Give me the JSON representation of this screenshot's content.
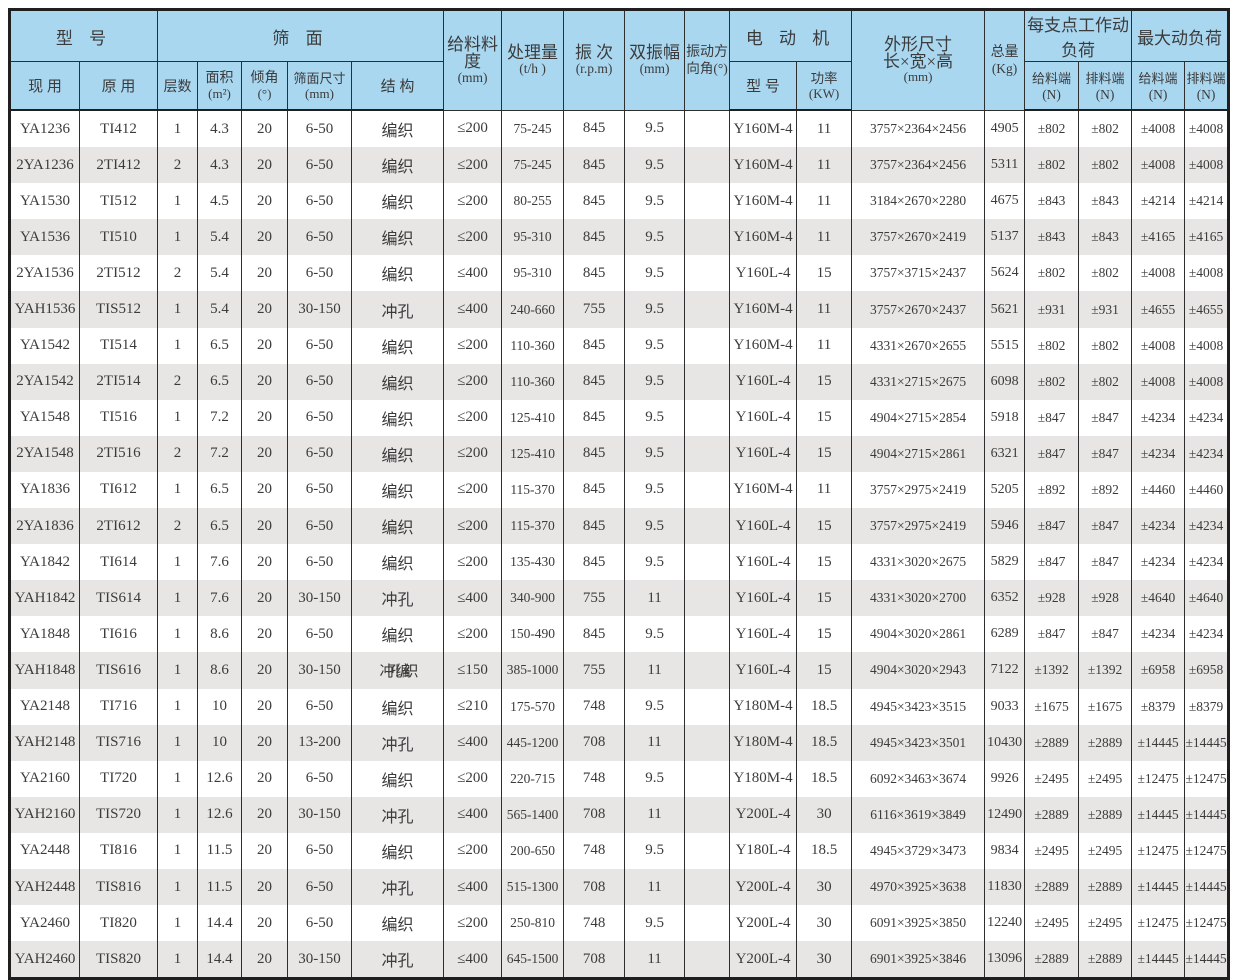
{
  "colors": {
    "header_bg": "#aad7f0",
    "stripe_bg": "#e8e6e4",
    "border": "#2e2e2e",
    "text": "#3b3b3b"
  },
  "table": {
    "header": {
      "group_model": "型  号",
      "model_current": "现 用",
      "model_original": "原 用",
      "group_screen": "筛  面",
      "layers": "层数",
      "area_l1": "面积",
      "area_l2": "(m²)",
      "incline_l1": "倾角",
      "incline_l2": "(°)",
      "mesh_l1": "筛面尺寸",
      "mesh_l2": "(mm)",
      "structure": "结 构",
      "feed_l1": "给料料度",
      "feed_l2": "(mm)",
      "capacity_l1": "处理量",
      "capacity_l2": "(t/h )",
      "freq_l1": "振 次",
      "freq_l2": "(r.p.m)",
      "amp_l1": "双振幅",
      "amp_l2": "(mm)",
      "vib_l1": "振动方",
      "vib_l2": "向角(°)",
      "group_motor": "电 动 机",
      "motor_model": "型 号",
      "power_l1": "功率",
      "power_l2": "(KW)",
      "dims_l1": "外形尺寸",
      "dims_l2": "长×宽×高",
      "dims_l3": "(mm)",
      "weight_l1": "总量",
      "weight_l2": "(Kg)",
      "group_working_load": "每支点工作动负荷",
      "group_max_load": "最大动负荷",
      "feed_end_l1": "给料端",
      "feed_end_l2": "(N)",
      "discharge_end_l1": "排料端",
      "discharge_end_l2": "(N)"
    },
    "rows": [
      [
        "YA1236",
        "TI412",
        "1",
        "4.3",
        "20",
        "6-50",
        "编织",
        "≤200",
        "75-245",
        "845",
        "9.5",
        "",
        "Y160M-4",
        "11",
        "3757×2364×2456",
        "4905",
        "±802",
        "±802",
        "±4008",
        "±4008"
      ],
      [
        "2YA1236",
        "2TI412",
        "2",
        "4.3",
        "20",
        "6-50",
        "编织",
        "≤200",
        "75-245",
        "845",
        "9.5",
        "",
        "Y160M-4",
        "11",
        "3757×2364×2456",
        "5311",
        "±802",
        "±802",
        "±4008",
        "±4008"
      ],
      [
        "YA1530",
        "TI512",
        "1",
        "4.5",
        "20",
        "6-50",
        "编织",
        "≤200",
        "80-255",
        "845",
        "9.5",
        "",
        "Y160M-4",
        "11",
        "3184×2670×2280",
        "4675",
        "±843",
        "±843",
        "±4214",
        "±4214"
      ],
      [
        "YA1536",
        "TI510",
        "1",
        "5.4",
        "20",
        "6-50",
        "编织",
        "≤200",
        "95-310",
        "845",
        "9.5",
        "",
        "Y160M-4",
        "11",
        "3757×2670×2419",
        "5137",
        "±843",
        "±843",
        "±4165",
        "±4165"
      ],
      [
        "2YA1536",
        "2TI512",
        "2",
        "5.4",
        "20",
        "6-50",
        "编织",
        "≤400",
        "95-310",
        "845",
        "9.5",
        "",
        "Y160L-4",
        "15",
        "3757×3715×2437",
        "5624",
        "±802",
        "±802",
        "±4008",
        "±4008"
      ],
      [
        "YAH1536",
        "TIS512",
        "1",
        "5.4",
        "20",
        "30-150",
        "冲孔",
        "≤400",
        "240-660",
        "755",
        "9.5",
        "",
        "Y160M-4",
        "11",
        "3757×2670×2437",
        "5621",
        "±931",
        "±931",
        "±4655",
        "±4655"
      ],
      [
        "YA1542",
        "TI514",
        "1",
        "6.5",
        "20",
        "6-50",
        "编织",
        "≤200",
        "110-360",
        "845",
        "9.5",
        "",
        "Y160M-4",
        "11",
        "4331×2670×2655",
        "5515",
        "±802",
        "±802",
        "±4008",
        "±4008"
      ],
      [
        "2YA1542",
        "2TI514",
        "2",
        "6.5",
        "20",
        "6-50",
        "编织",
        "≤200",
        "110-360",
        "845",
        "9.5",
        "",
        "Y160L-4",
        "15",
        "4331×2715×2675",
        "6098",
        "±802",
        "±802",
        "±4008",
        "±4008"
      ],
      [
        "YA1548",
        "TI516",
        "1",
        "7.2",
        "20",
        "6-50",
        "编织",
        "≤200",
        "125-410",
        "845",
        "9.5",
        "",
        "Y160L-4",
        "15",
        "4904×2715×2854",
        "5918",
        "±847",
        "±847",
        "±4234",
        "±4234"
      ],
      [
        "2YA1548",
        "2TI516",
        "2",
        "7.2",
        "20",
        "6-50",
        "编织",
        "≤200",
        "125-410",
        "845",
        "9.5",
        "",
        "Y160L-4",
        "15",
        "4904×2715×2861",
        "6321",
        "±847",
        "±847",
        "±4234",
        "±4234"
      ],
      [
        "YA1836",
        "TI612",
        "1",
        "6.5",
        "20",
        "6-50",
        "编织",
        "≤200",
        "115-370",
        "845",
        "9.5",
        "",
        "Y160M-4",
        "11",
        "3757×2975×2419",
        "5205",
        "±892",
        "±892",
        "±4460",
        "±4460"
      ],
      [
        "2YA1836",
        "2TI612",
        "2",
        "6.5",
        "20",
        "6-50",
        "编织",
        "≤200",
        "115-370",
        "845",
        "9.5",
        "",
        "Y160L-4",
        "15",
        "3757×2975×2419",
        "5946",
        "±847",
        "±847",
        "±4234",
        "±4234"
      ],
      [
        "YA1842",
        "TI614",
        "1",
        "7.6",
        "20",
        "6-50",
        "编织",
        "≤200",
        "135-430",
        "845",
        "9.5",
        "",
        "Y160L-4",
        "15",
        "4331×3020×2675",
        "5829",
        "±847",
        "±847",
        "±4234",
        "±4234"
      ],
      [
        "YAH1842",
        "TIS614",
        "1",
        "7.6",
        "20",
        "30-150",
        "冲孔",
        "≤400",
        "340-900",
        "755",
        "11",
        "",
        "Y160L-4",
        "15",
        "4331×3020×2700",
        "6352",
        "±928",
        "±928",
        "±4640",
        "±4640"
      ],
      [
        "YA1848",
        "TI616",
        "1",
        "8.6",
        "20",
        "6-50",
        "编织",
        "≤200",
        "150-490",
        "845",
        "9.5",
        "",
        "Y160L-4",
        "15",
        "4904×3020×2861",
        "6289",
        "±847",
        "±847",
        "±4234",
        "±4234"
      ],
      [
        "YAH1848",
        "TIS616",
        "1",
        "8.6",
        "20",
        "30-150",
        "冲孔编织",
        "≤150",
        "385-1000",
        "755",
        "11",
        "",
        "Y160L-4",
        "15",
        "4904×3020×2943",
        "7122",
        "±1392",
        "±1392",
        "±6958",
        "±6958"
      ],
      [
        "YA2148",
        "TI716",
        "1",
        "10",
        "20",
        "6-50",
        "编织",
        "≤210",
        "175-570",
        "748",
        "9.5",
        "",
        "Y180M-4",
        "18.5",
        "4945×3423×3515",
        "9033",
        "±1675",
        "±1675",
        "±8379",
        "±8379"
      ],
      [
        "YAH2148",
        "TIS716",
        "1",
        "10",
        "20",
        "13-200",
        "冲孔",
        "≤400",
        "445-1200",
        "708",
        "11",
        "",
        "Y180M-4",
        "18.5",
        "4945×3423×3501",
        "10430",
        "±2889",
        "±2889",
        "±14445",
        "±14445"
      ],
      [
        "YA2160",
        "TI720",
        "1",
        "12.6",
        "20",
        "6-50",
        "编织",
        "≤200",
        "220-715",
        "748",
        "9.5",
        "",
        "Y180M-4",
        "18.5",
        "6092×3463×3674",
        "9926",
        "±2495",
        "±2495",
        "±12475",
        "±12475"
      ],
      [
        "YAH2160",
        "TIS720",
        "1",
        "12.6",
        "20",
        "30-150",
        "冲孔",
        "≤400",
        "565-1400",
        "708",
        "11",
        "",
        "Y200L-4",
        "30",
        "6116×3619×3849",
        "12490",
        "±2889",
        "±2889",
        "±14445",
        "±14445"
      ],
      [
        "YA2448",
        "TI816",
        "1",
        "11.5",
        "20",
        "6-50",
        "编织",
        "≤200",
        "200-650",
        "748",
        "9.5",
        "",
        "Y180L-4",
        "18.5",
        "4945×3729×3473",
        "9834",
        "±2495",
        "±2495",
        "±12475",
        "±12475"
      ],
      [
        "YAH2448",
        "TIS816",
        "1",
        "11.5",
        "20",
        "6-50",
        "冲孔",
        "≤400",
        "515-1300",
        "708",
        "11",
        "",
        "Y200L-4",
        "30",
        "4970×3925×3638",
        "11830",
        "±2889",
        "±2889",
        "±14445",
        "±14445"
      ],
      [
        "YA2460",
        "TI820",
        "1",
        "14.4",
        "20",
        "6-50",
        "编织",
        "≤200",
        "250-810",
        "748",
        "9.5",
        "",
        "Y200L-4",
        "30",
        "6091×3925×3850",
        "12240",
        "±2495",
        "±2495",
        "±12475",
        "±12475"
      ],
      [
        "YAH2460",
        "TIS820",
        "1",
        "14.4",
        "20",
        "30-150",
        "冲孔",
        "≤400",
        "645-1500",
        "708",
        "11",
        "",
        "Y200L-4",
        "30",
        "6901×3925×3846",
        "13096",
        "±2889",
        "±2889",
        "±14445",
        "±14445"
      ]
    ]
  }
}
